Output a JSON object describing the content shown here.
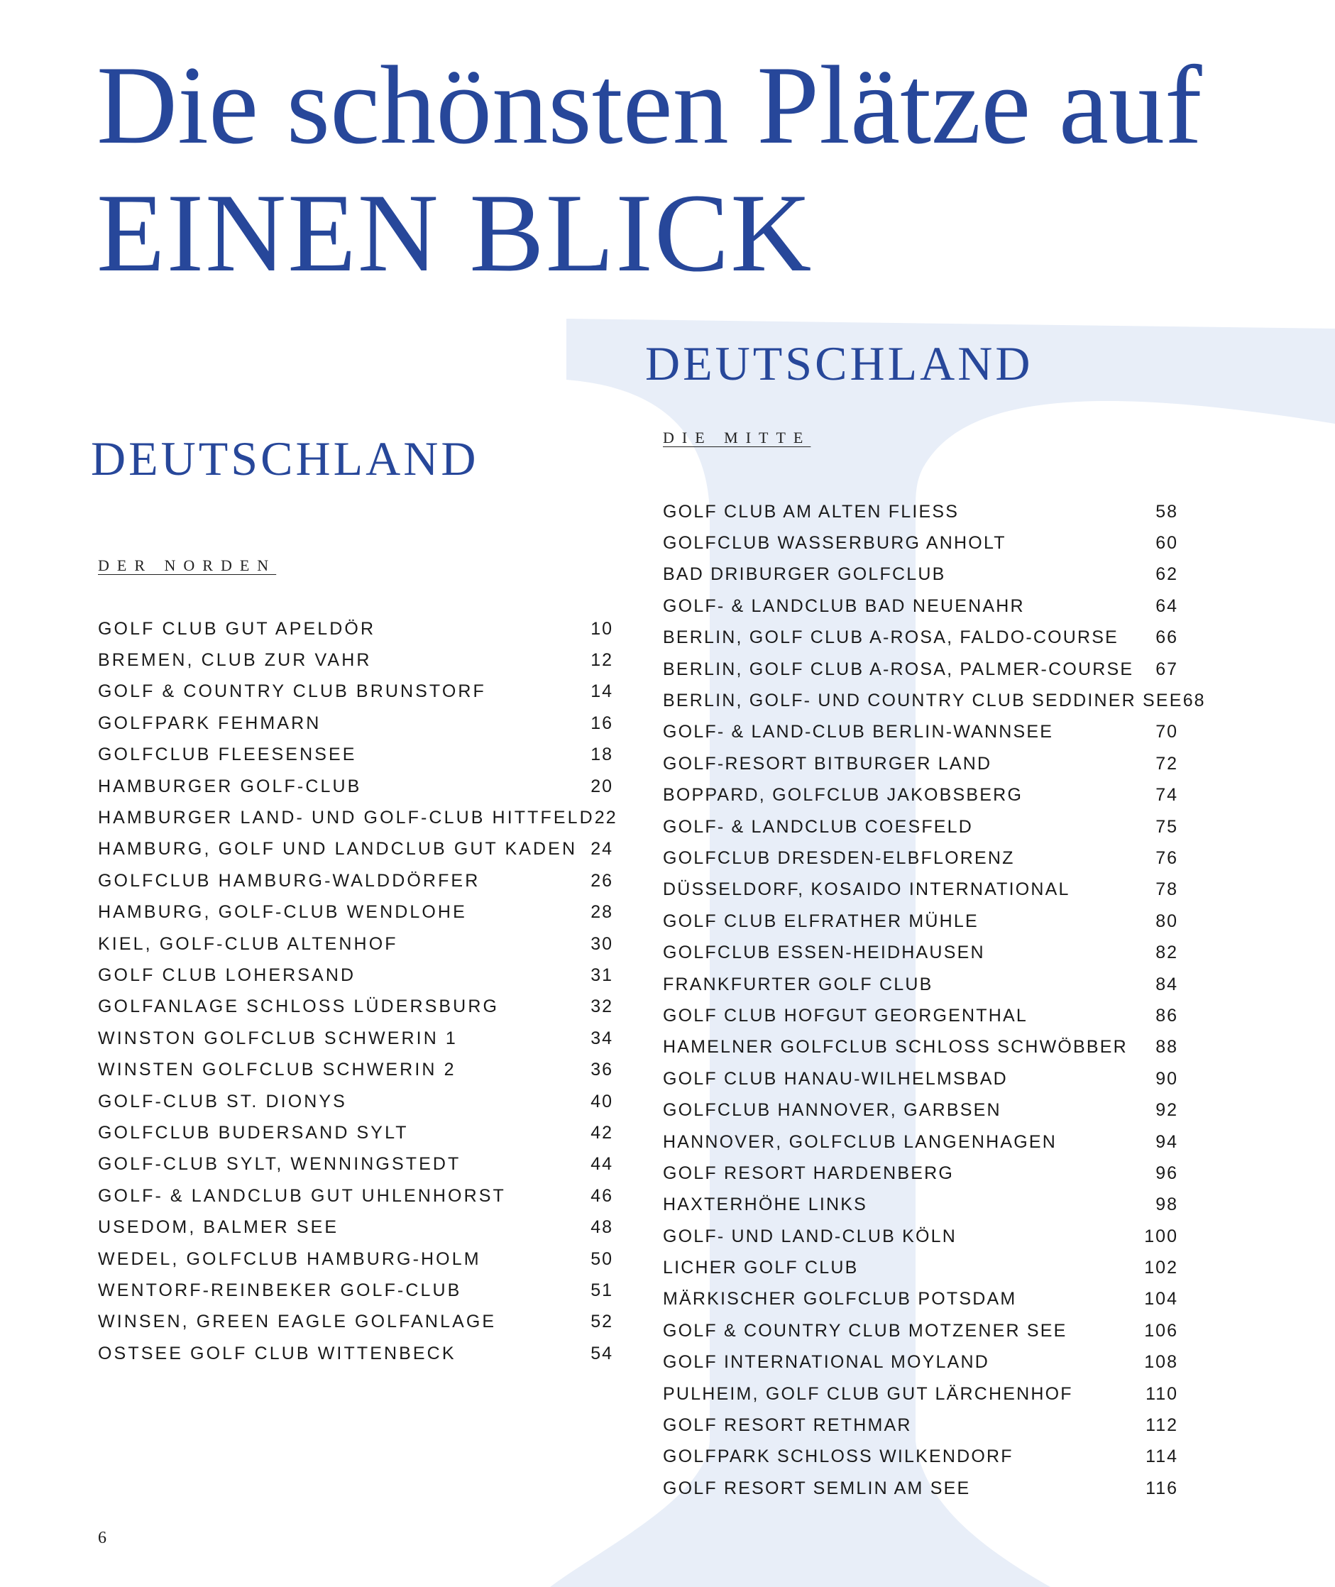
{
  "title": {
    "line1": "Die schönsten Plätze auf",
    "line2": "EINEN BLICK"
  },
  "colors": {
    "title_blue": "#27479a",
    "background_glyph": "#e8eef8"
  },
  "left": {
    "region": "DEUTSCHLAND",
    "subregion": "DER NORDEN",
    "entries": [
      {
        "name": "GOLF CLUB GUT APELDÖR",
        "page": "10"
      },
      {
        "name": "BREMEN, CLUB ZUR VAHR",
        "page": "12"
      },
      {
        "name": "GOLF & COUNTRY CLUB BRUNSTORF",
        "page": "14"
      },
      {
        "name": "GOLFPARK FEHMARN",
        "page": "16"
      },
      {
        "name": "GOLFCLUB FLEESENSEE",
        "page": "18"
      },
      {
        "name": "HAMBURGER GOLF-CLUB",
        "page": "20"
      },
      {
        "name": "HAMBURGER LAND- UND GOLF-CLUB HITTFELD",
        "page": "22"
      },
      {
        "name": "HAMBURG, GOLF UND LANDCLUB GUT KADEN",
        "page": "24"
      },
      {
        "name": "GOLFCLUB HAMBURG-WALDDÖRFER",
        "page": "26"
      },
      {
        "name": "HAMBURG, GOLF-CLUB WENDLOHE",
        "page": "28"
      },
      {
        "name": "KIEL, GOLF-CLUB ALTENHOF",
        "page": "30"
      },
      {
        "name": "GOLF CLUB LOHERSAND",
        "page": "31"
      },
      {
        "name": "GOLFANLAGE SCHLOSS LÜDERSBURG",
        "page": "32"
      },
      {
        "name": "WINSTON GOLFCLUB SCHWERIN 1",
        "page": "34"
      },
      {
        "name": "WINSTEN GOLFCLUB SCHWERIN 2",
        "page": "36"
      },
      {
        "name": "GOLF-CLUB ST. DIONYS",
        "page": "40"
      },
      {
        "name": "GOLFCLUB BUDERSAND SYLT",
        "page": "42"
      },
      {
        "name": "GOLF-CLUB SYLT, WENNINGSTEDT",
        "page": "44"
      },
      {
        "name": "GOLF- & LANDCLUB GUT UHLENHORST",
        "page": "46"
      },
      {
        "name": "USEDOM, BALMER SEE",
        "page": "48"
      },
      {
        "name": "WEDEL, GOLFCLUB HAMBURG-HOLM",
        "page": "50"
      },
      {
        "name": "WENTORF-REINBEKER GOLF-CLUB",
        "page": "51"
      },
      {
        "name": "WINSEN, GREEN EAGLE GOLFANLAGE",
        "page": "52"
      },
      {
        "name": "OSTSEE GOLF CLUB WITTENBECK",
        "page": "54"
      }
    ]
  },
  "right": {
    "region": "DEUTSCHLAND",
    "subregion": "DIE MITTE",
    "entries": [
      {
        "name": "GOLF CLUB AM ALTEN FLIESS",
        "page": "58"
      },
      {
        "name": "GOLFCLUB WASSERBURG ANHOLT",
        "page": "60"
      },
      {
        "name": "BAD DRIBURGER GOLFCLUB",
        "page": "62"
      },
      {
        "name": "GOLF- & LANDCLUB BAD NEUENAHR",
        "page": "64"
      },
      {
        "name": "BERLIN, GOLF CLUB A-ROSA, FALDO-COURSE",
        "page": "66"
      },
      {
        "name": "BERLIN, GOLF CLUB A-ROSA, PALMER-COURSE",
        "page": "67"
      },
      {
        "name": "BERLIN, GOLF- UND COUNTRY CLUB SEDDINER SEE",
        "page": "68"
      },
      {
        "name": "GOLF- & LAND-CLUB BERLIN-WANNSEE",
        "page": "70"
      },
      {
        "name": "GOLF-RESORT BITBURGER LAND",
        "page": "72"
      },
      {
        "name": "BOPPARD, GOLFCLUB JAKOBSBERG",
        "page": "74"
      },
      {
        "name": "GOLF- & LANDCLUB COESFELD",
        "page": "75"
      },
      {
        "name": "GOLFCLUB DRESDEN-ELBFLORENZ",
        "page": "76"
      },
      {
        "name": "DÜSSELDORF, KOSAIDO INTERNATIONAL",
        "page": "78"
      },
      {
        "name": "GOLF CLUB ELFRATHER MÜHLE",
        "page": "80"
      },
      {
        "name": "GOLFCLUB ESSEN-HEIDHAUSEN",
        "page": "82"
      },
      {
        "name": "FRANKFURTER GOLF CLUB",
        "page": "84"
      },
      {
        "name": "GOLF CLUB HOFGUT GEORGENTHAL",
        "page": "86"
      },
      {
        "name": "HAMELNER GOLFCLUB SCHLOSS SCHWÖBBER",
        "page": "88"
      },
      {
        "name": "GOLF CLUB HANAU-WILHELMSBAD",
        "page": "90"
      },
      {
        "name": "GOLFCLUB HANNOVER, GARBSEN",
        "page": "92"
      },
      {
        "name": "HANNOVER, GOLFCLUB LANGENHAGEN",
        "page": "94"
      },
      {
        "name": "GOLF RESORT HARDENBERG",
        "page": "96"
      },
      {
        "name": "HAXTERHÖHE LINKS",
        "page": "98"
      },
      {
        "name": "GOLF- UND LAND-CLUB KÖLN",
        "page": "100"
      },
      {
        "name": "LICHER GOLF CLUB",
        "page": "102"
      },
      {
        "name": "MÄRKISCHER GOLFCLUB POTSDAM",
        "page": "104"
      },
      {
        "name": "GOLF & COUNTRY CLUB MOTZENER SEE",
        "page": "106"
      },
      {
        "name": "GOLF INTERNATIONAL MOYLAND",
        "page": "108"
      },
      {
        "name": "PULHEIM, GOLF CLUB GUT LÄRCHENHOF",
        "page": "110"
      },
      {
        "name": "GOLF RESORT RETHMAR",
        "page": "112"
      },
      {
        "name": "GOLFPARK SCHLOSS WILKENDORF",
        "page": "114"
      },
      {
        "name": "GOLF RESORT SEMLIN AM SEE",
        "page": "116"
      }
    ]
  },
  "page_number": "6"
}
